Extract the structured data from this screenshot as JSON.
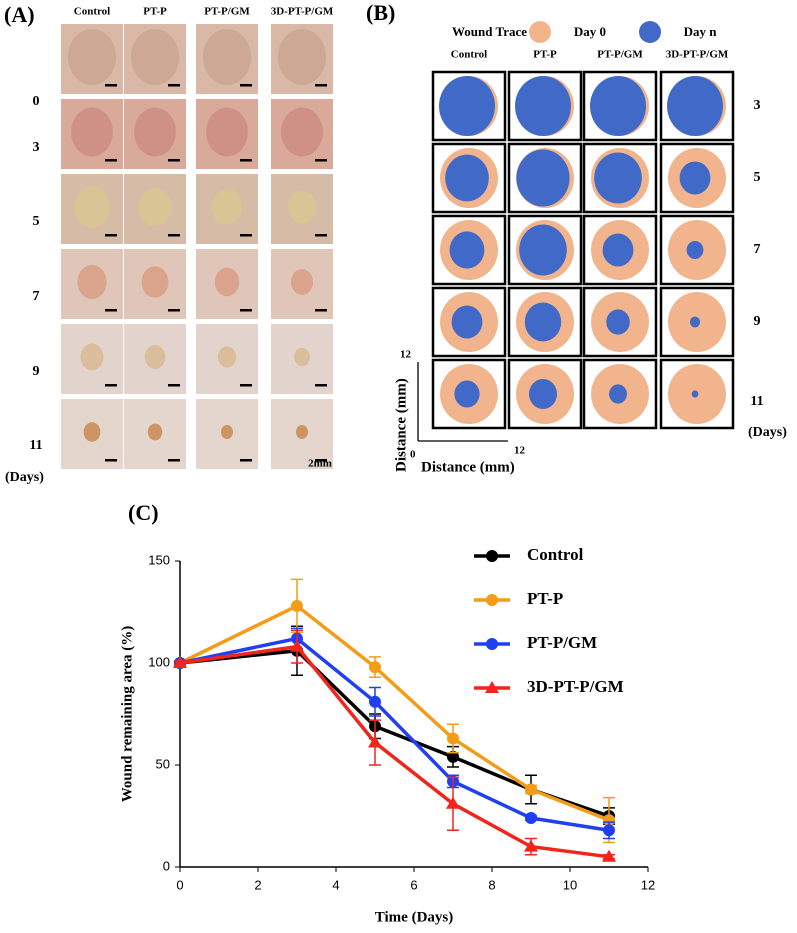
{
  "panel_a": {
    "label": "(A)",
    "columns": [
      "Control",
      "PT-P",
      "PT-P/GM",
      "3D-PT-P/GM"
    ],
    "rows": [
      "0",
      "3",
      "5",
      "7",
      "9",
      "11"
    ],
    "days_label": "(Days)",
    "scale_bar": "2mm"
  },
  "panel_b": {
    "label": "(B)",
    "legend_title": "Wound Trace",
    "legend": [
      {
        "name": "Day 0",
        "color": "#f2b48c"
      },
      {
        "name": "Day n",
        "color": "#4169c8"
      }
    ],
    "columns": [
      "Control",
      "PT-P",
      "PT-P/GM",
      "3D-PT-P/GM"
    ],
    "rows": [
      "3",
      "5",
      "7",
      "9",
      "11"
    ],
    "days_label": "(Days)",
    "y_axis_label": "Distance (mm)",
    "x_axis_label": "Distance (mm)",
    "y_axis_max": "12",
    "x_axis_max": "12",
    "origin": "0"
  },
  "chart_data": {
    "type": "line",
    "panel_label": "(C)",
    "x_label": "Time (Days)",
    "y_label": "Wound remaining area (%)",
    "x": [
      0,
      3,
      5,
      7,
      9,
      11
    ],
    "series": [
      {
        "name": "Control",
        "color": "#000000",
        "marker": "circle",
        "values": [
          100,
          106,
          69,
          54,
          38,
          25
        ],
        "errors": [
          1,
          12,
          6,
          5,
          7,
          4
        ]
      },
      {
        "name": "PT-P",
        "color": "#f39c1a",
        "marker": "circle",
        "values": [
          100,
          128,
          98,
          63,
          38,
          23
        ],
        "errors": [
          1,
          13,
          5,
          7,
          2,
          11
        ]
      },
      {
        "name": "PT-P/GM",
        "color": "#1f3ff0",
        "marker": "circle",
        "values": [
          100,
          112,
          81,
          42,
          24,
          18
        ],
        "errors": [
          1,
          5,
          7,
          3,
          1,
          4
        ]
      },
      {
        "name": "3D-PT-P/GM",
        "color": "#f0261a",
        "marker": "triangle",
        "values": [
          100,
          108,
          61,
          31,
          10,
          5
        ],
        "errors": [
          1,
          8,
          11,
          13,
          4,
          1
        ]
      }
    ],
    "xlim": [
      0,
      12
    ],
    "xticks": [
      0,
      2,
      4,
      6,
      8,
      10,
      12
    ],
    "ylim": [
      0,
      150
    ],
    "yticks": [
      0,
      50,
      100,
      150
    ],
    "grid": false
  }
}
